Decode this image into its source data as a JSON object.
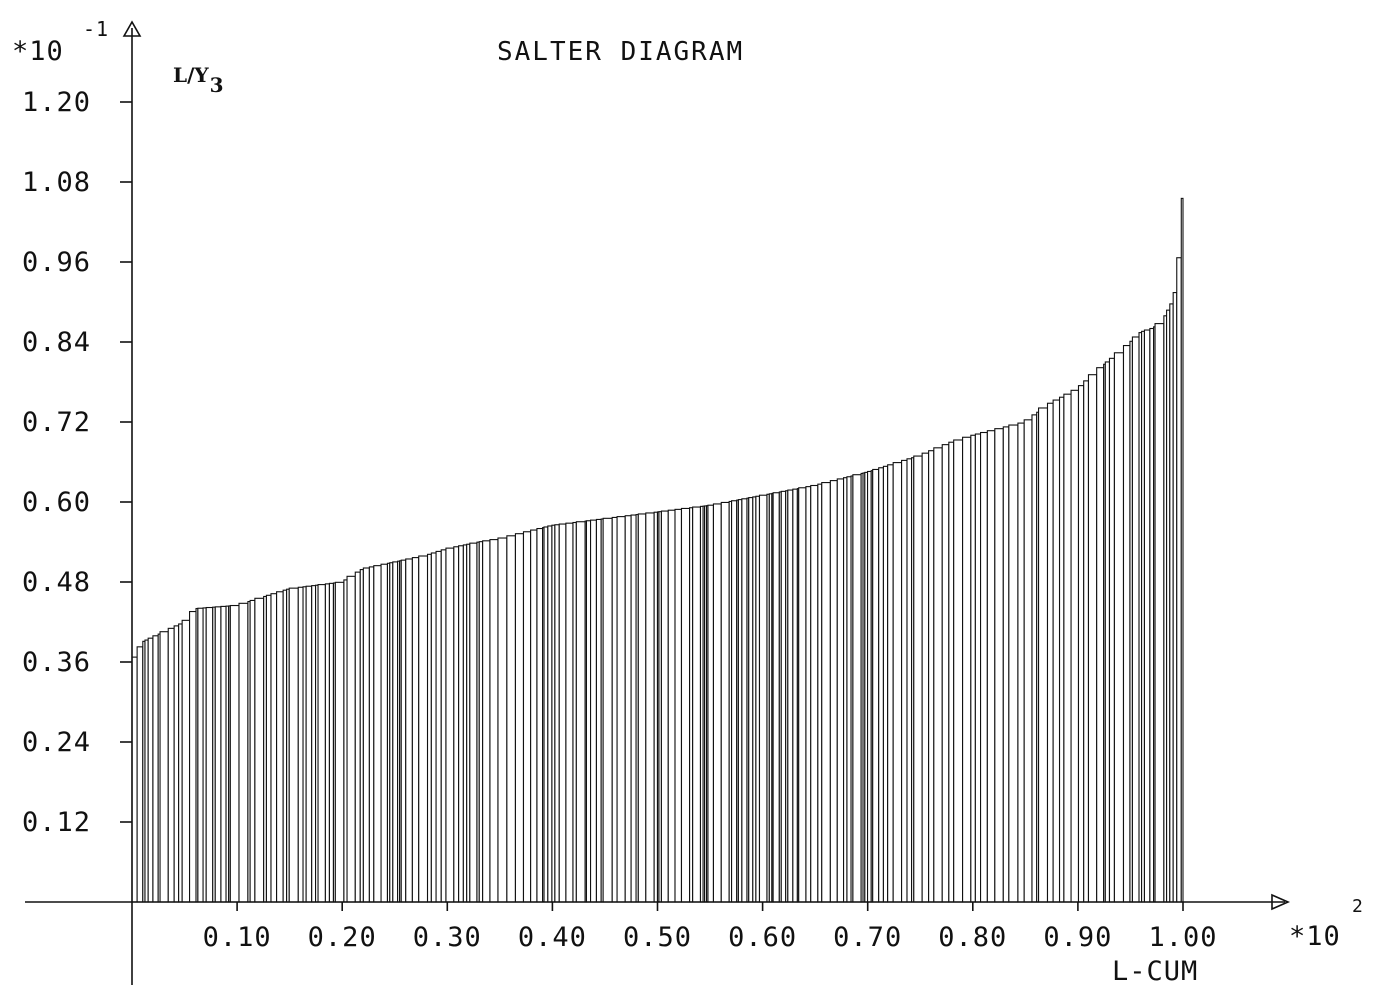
{
  "chart_data": {
    "type": "bar",
    "title": "SALTER DIAGRAM",
    "ylabel_main": "L/Y",
    "ylabel_sub": "3",
    "xlabel": "L-CUM",
    "y_multiplier": {
      "base": "*10",
      "exponent": "-1"
    },
    "x_multiplier": {
      "base": "*10",
      "exponent": "2"
    },
    "xlim": [
      0,
      1.0
    ],
    "ylim": [
      0,
      1.2
    ],
    "xticks": [
      0.1,
      0.2,
      0.3,
      0.4,
      0.5,
      0.6,
      0.7,
      0.8,
      0.9,
      1.0
    ],
    "xtick_labels": [
      "0.10",
      "0.20",
      "0.30",
      "0.40",
      "0.50",
      "0.60",
      "0.70",
      "0.80",
      "0.90",
      "1.00"
    ],
    "yticks": [
      0.12,
      0.24,
      0.36,
      0.48,
      0.6,
      0.72,
      0.84,
      0.96,
      1.08,
      1.2
    ],
    "ytick_labels": [
      "0.12",
      "0.24",
      "0.36",
      "0.48",
      "0.60",
      "0.72",
      "0.84",
      "0.96",
      "1.08",
      "1.20"
    ],
    "grid": false,
    "bar_style": "outlined, contiguous variable-width bars sorted by height",
    "profile_x": [
      0.0,
      0.01,
      0.03,
      0.05,
      0.06,
      0.1,
      0.12,
      0.15,
      0.2,
      0.22,
      0.25,
      0.28,
      0.3,
      0.33,
      0.35,
      0.4,
      0.45,
      0.5,
      0.55,
      0.6,
      0.65,
      0.7,
      0.75,
      0.78,
      0.8,
      0.85,
      0.87,
      0.9,
      0.92,
      0.94,
      0.96,
      0.97,
      0.98,
      0.99,
      0.995,
      1.0
    ],
    "profile_y": [
      0.36,
      0.39,
      0.405,
      0.42,
      0.44,
      0.445,
      0.455,
      0.47,
      0.48,
      0.5,
      0.51,
      0.52,
      0.53,
      0.54,
      0.545,
      0.565,
      0.575,
      0.585,
      0.595,
      0.61,
      0.625,
      0.645,
      0.67,
      0.69,
      0.7,
      0.72,
      0.745,
      0.77,
      0.8,
      0.825,
      0.855,
      0.86,
      0.87,
      0.9,
      0.93,
      1.08
    ]
  }
}
